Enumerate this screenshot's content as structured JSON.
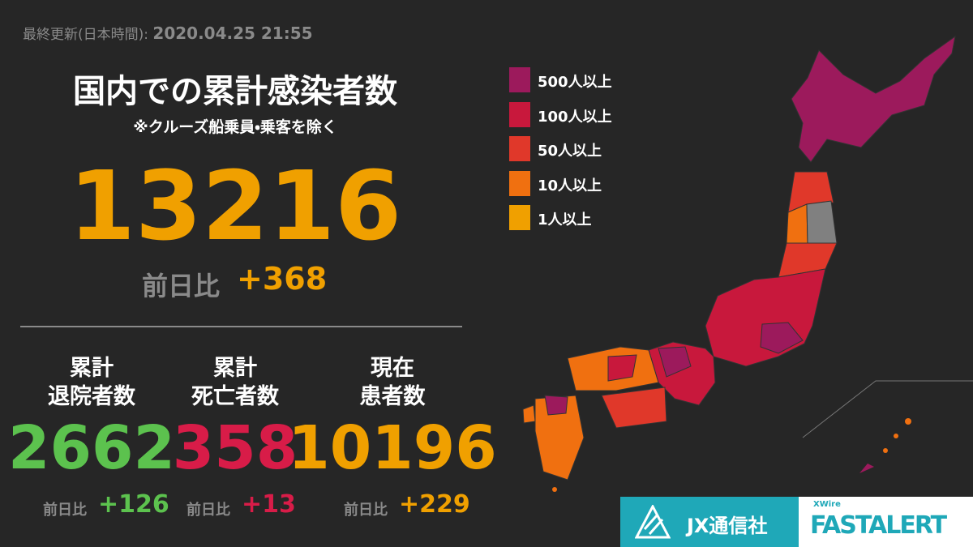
{
  "header": {
    "updated_label": "最終更新(日本時間):",
    "updated_at": "2020.04.25 21:55"
  },
  "total": {
    "title": "国内での累計感染者数",
    "note": "※クルーズ船乗員・乗客を除く",
    "value": 13216,
    "change_label": "前日比",
    "change": "+368",
    "color": "#f0a000"
  },
  "stats": [
    {
      "label_lines": [
        "累計",
        "退院者数"
      ],
      "value": 2662,
      "change_label": "前日比",
      "change": "+126",
      "color": "#5cc24e"
    },
    {
      "label_lines": [
        "累計",
        "死亡者数"
      ],
      "value": 358,
      "change_label": "前日比",
      "change": "+13",
      "color": "#d81c48"
    },
    {
      "label_lines": [
        "現在",
        "患者数"
      ],
      "value": 10196,
      "change_label": "前日比",
      "change": "+229",
      "color": "#f0a000"
    }
  ],
  "legend": [
    {
      "label": "500人以上",
      "color": "#9c1a5c"
    },
    {
      "label": "100人以上",
      "color": "#c8183c"
    },
    {
      "label": "50人以上",
      "color": "#e0382a"
    },
    {
      "label": "10人以上",
      "color": "#f07010"
    },
    {
      "label": "1人以上",
      "color": "#f0a000"
    }
  ],
  "logos": {
    "jx": "JX通信社",
    "xwire": "XWire",
    "fastalert": "FASTALERT"
  }
}
